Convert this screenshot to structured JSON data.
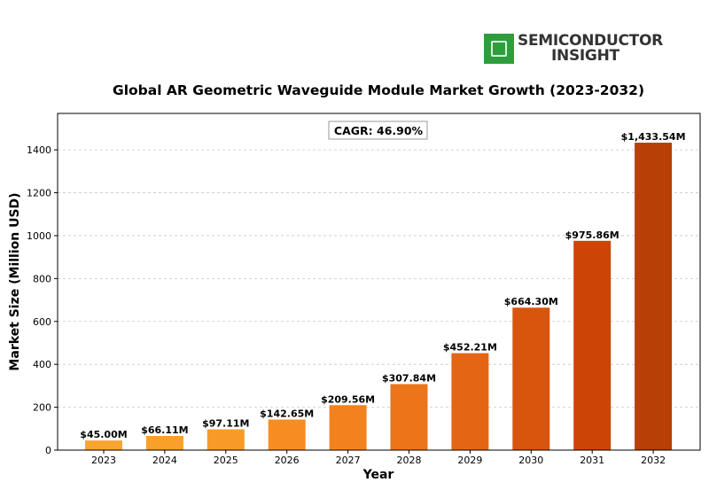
{
  "logo": {
    "line1": "SEMICONDUCTOR",
    "line2": "INSIGHT"
  },
  "chart_data": {
    "type": "bar",
    "title": "Global AR Geometric Waveguide Module Market Growth (2023-2032)",
    "xlabel": "Year",
    "ylabel": "Market Size (Million USD)",
    "ylim": [
      0,
      1570
    ],
    "yticks": [
      0,
      200,
      400,
      600,
      800,
      1000,
      1200,
      1400
    ],
    "grid": true,
    "categories": [
      "2023",
      "2024",
      "2025",
      "2026",
      "2027",
      "2028",
      "2029",
      "2030",
      "2031",
      "2032"
    ],
    "values": [
      45.0,
      66.11,
      97.11,
      142.65,
      209.56,
      307.84,
      452.21,
      664.3,
      975.86,
      1433.54
    ],
    "labels": [
      "$45.00M",
      "$66.11M",
      "$97.11M",
      "$142.65M",
      "$209.56M",
      "$307.84M",
      "$452.21M",
      "$664.30M",
      "$975.86M",
      "$1,433.54M"
    ],
    "colors": [
      "#f9a62e",
      "#f8a02a",
      "#f89a27",
      "#f78d22",
      "#f3821e",
      "#ec7419",
      "#e46614",
      "#d9550e",
      "#cc4406",
      "#b83f06"
    ],
    "annotation": "CAGR: 46.90%"
  }
}
